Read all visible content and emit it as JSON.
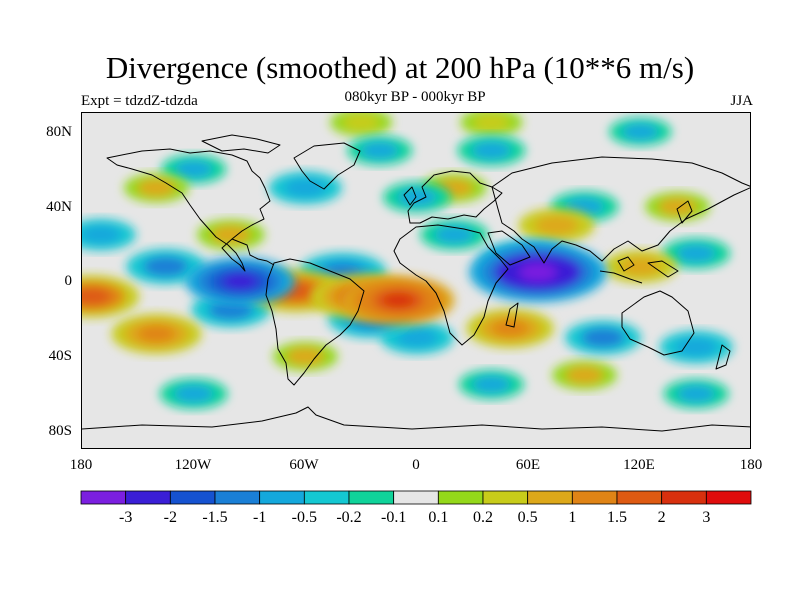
{
  "header": {
    "title": "Divergence (smoothed) at 200 hPa (10**6 m/s)",
    "subtitle": "080kyr BP - 000kyr BP",
    "experiment": "Expt = tdzdZ-tdzda",
    "season": "JJA"
  },
  "axes": {
    "lat_labels": [
      "80N",
      "40N",
      "0",
      "40S",
      "80S"
    ],
    "lon_labels": [
      "180",
      "120W",
      "60W",
      "0",
      "60E",
      "120E",
      "180"
    ]
  },
  "colorbar": {
    "labels": [
      "-3",
      "-2",
      "-1.5",
      "-1",
      "-0.5",
      "-0.2",
      "-0.1",
      "0.1",
      "0.2",
      "0.5",
      "1",
      "1.5",
      "2",
      "3"
    ],
    "colors": [
      "#7b1fe0",
      "#3a1ed6",
      "#1552d0",
      "#1a7fd6",
      "#14a8dc",
      "#14c8d2",
      "#10d39a",
      "#e6e6e6",
      "#94d81a",
      "#c8cc1a",
      "#dda81a",
      "#e08416",
      "#de5a12",
      "#d8300e",
      "#e00c0c"
    ]
  },
  "chart_data": {
    "type": "filled-contour-map",
    "title": "Divergence (smoothed) at 200 hPa (10**6 m/s)",
    "subtitle": "080kyr BP - 000kyr BP",
    "variable": "200 hPa divergence difference",
    "units": "10**6 m/s",
    "season": "JJA",
    "x_range_deg": [
      -180,
      180
    ],
    "y_range_deg": [
      -90,
      90
    ],
    "levels": [
      -3,
      -2,
      -1.5,
      -1,
      -0.5,
      -0.2,
      -0.1,
      0.1,
      0.2,
      0.5,
      1,
      1.5,
      2,
      3
    ],
    "anomalies": [
      {
        "lon": 65,
        "lat": 5,
        "value": -3.2
      },
      {
        "lon": 60,
        "lat": 10,
        "value": -1.8
      },
      {
        "lon": -95,
        "lat": 0,
        "value": -2.2
      },
      {
        "lon": -40,
        "lat": 5,
        "value": -1.4
      },
      {
        "lon": -135,
        "lat": 8,
        "value": -1.1
      },
      {
        "lon": -100,
        "lat": -15,
        "value": -1.1
      },
      {
        "lon": -25,
        "lat": -20,
        "value": -1.3
      },
      {
        "lon": 0,
        "lat": -30,
        "value": -0.9
      },
      {
        "lon": 100,
        "lat": -30,
        "value": -1.0
      },
      {
        "lon": 150,
        "lat": -35,
        "value": -0.9
      },
      {
        "lon": -60,
        "lat": 50,
        "value": -0.9
      },
      {
        "lon": 20,
        "lat": 25,
        "value": -0.7
      },
      {
        "lon": 0,
        "lat": 45,
        "value": -0.7
      },
      {
        "lon": 150,
        "lat": 15,
        "value": -0.7
      },
      {
        "lon": -170,
        "lat": 25,
        "value": -0.8
      },
      {
        "lon": 40,
        "lat": 70,
        "value": -0.7
      },
      {
        "lon": 90,
        "lat": 40,
        "value": -0.7
      },
      {
        "lon": -120,
        "lat": 60,
        "value": -0.6
      },
      {
        "lon": -20,
        "lat": 70,
        "value": -0.6
      },
      {
        "lon": -120,
        "lat": -60,
        "value": -0.7
      },
      {
        "lon": 40,
        "lat": -55,
        "value": -0.6
      },
      {
        "lon": 150,
        "lat": -60,
        "value": -0.6
      },
      {
        "lon": 120,
        "lat": 80,
        "value": -0.5
      },
      {
        "lon": -10,
        "lat": -10,
        "value": 2.3
      },
      {
        "lon": -30,
        "lat": -8,
        "value": 1.9
      },
      {
        "lon": -65,
        "lat": -5,
        "value": 1.7
      },
      {
        "lon": -175,
        "lat": -8,
        "value": 1.7
      },
      {
        "lon": -140,
        "lat": -28,
        "value": 1.5
      },
      {
        "lon": 50,
        "lat": -25,
        "value": 1.4
      },
      {
        "lon": 75,
        "lat": 30,
        "value": 1.0
      },
      {
        "lon": 120,
        "lat": 8,
        "value": 0.9
      },
      {
        "lon": -100,
        "lat": 25,
        "value": 0.7
      },
      {
        "lon": -140,
        "lat": 50,
        "value": 0.6
      },
      {
        "lon": -60,
        "lat": -40,
        "value": 0.6
      },
      {
        "lon": 20,
        "lat": 50,
        "value": 0.6
      },
      {
        "lon": 140,
        "lat": 40,
        "value": 0.6
      },
      {
        "lon": 90,
        "lat": -50,
        "value": 0.6
      },
      {
        "lon": -30,
        "lat": 85,
        "value": 0.5
      },
      {
        "lon": 40,
        "lat": 85,
        "value": 0.5
      }
    ]
  }
}
